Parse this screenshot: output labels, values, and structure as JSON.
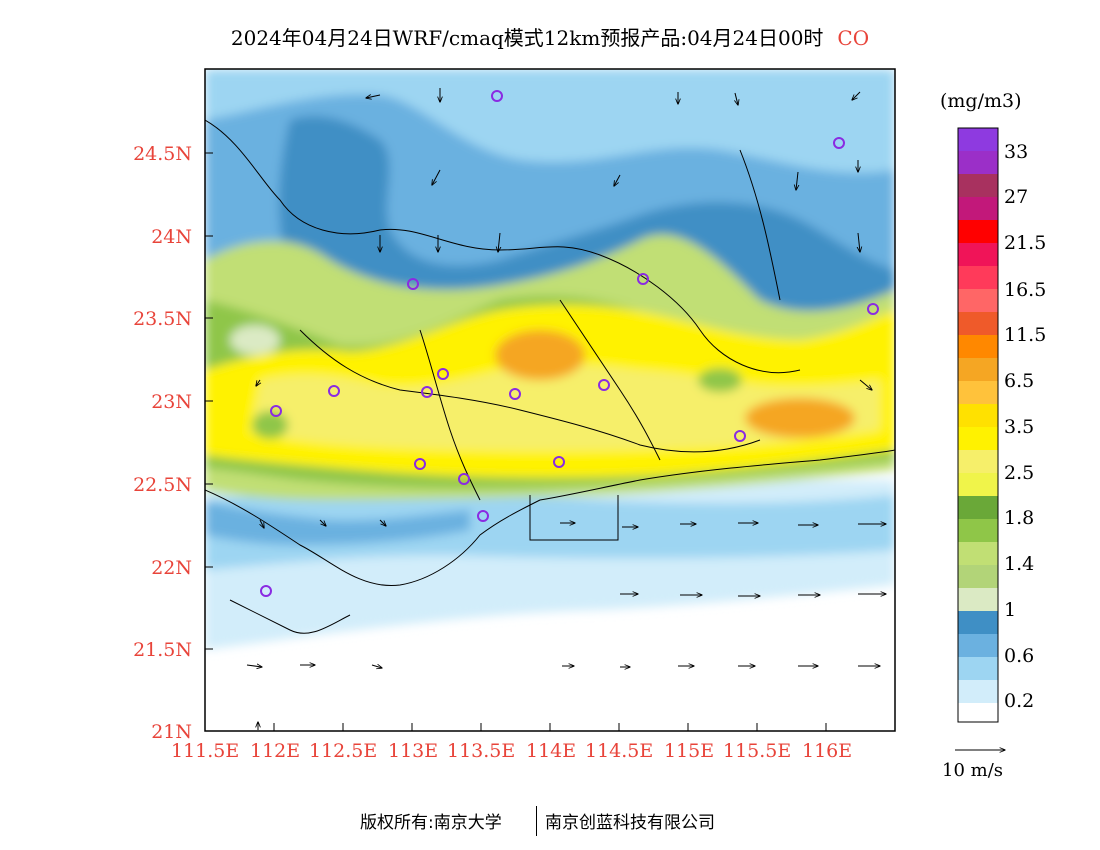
{
  "title": "2024年04月24日WRF/cmaq模式12km预报产品:04月24日00时",
  "species": "CO",
  "latitude_labels": [
    "24.5N",
    "24N",
    "23.5N",
    "23N",
    "22.5N",
    "22N",
    "21.5N",
    "21N"
  ],
  "longitude_labels": [
    "111.5E",
    "112E",
    "112.5E",
    "113E",
    "113.5E",
    "114E",
    "114.5E",
    "115E",
    "115.5E",
    "116E"
  ],
  "colorbar": {
    "units": "(mg/m3)",
    "labels": [
      "33",
      "27",
      "21.5",
      "16.5",
      "11.5",
      "6.5",
      "3.5",
      "2.5",
      "1.8",
      "1.4",
      "1",
      "0.6",
      "0.2"
    ],
    "colors_top_to_bottom": [
      "#8e3ae0",
      "#9b2fc8",
      "#a8315f",
      "#c2187a",
      "#ff0000",
      "#f01458",
      "#ff3a5a",
      "#ff6666",
      "#ef5a2a",
      "#ff8800",
      "#f5a623",
      "#ffc23b",
      "#ffe100",
      "#fff200",
      "#f6ef6a",
      "#f0f44a",
      "#6aa838",
      "#8fc648",
      "#c1df74",
      "#b2d478",
      "#dbeac4",
      "#3f8fc5",
      "#6bb1e0",
      "#9dd5f2",
      "#d2edfa",
      "#ffffff"
    ]
  },
  "vector_legend": "10 m/s",
  "footer": {
    "left": "版权所有:南京大学",
    "right": "南京创蓝科技有限公司"
  },
  "map_colors": {
    "water_white": "#ffffff",
    "light_blue": "#d2edfa",
    "sky_blue": "#9dd5f2",
    "mid_blue": "#6bb1e0",
    "dark_blue": "#3f8fc5",
    "pale_green": "#dbeac4",
    "light_green": "#c1df74",
    "green": "#8fc648",
    "yellow": "#fff200",
    "orange": "#f5a623",
    "station_marker": "#8a2be2"
  }
}
